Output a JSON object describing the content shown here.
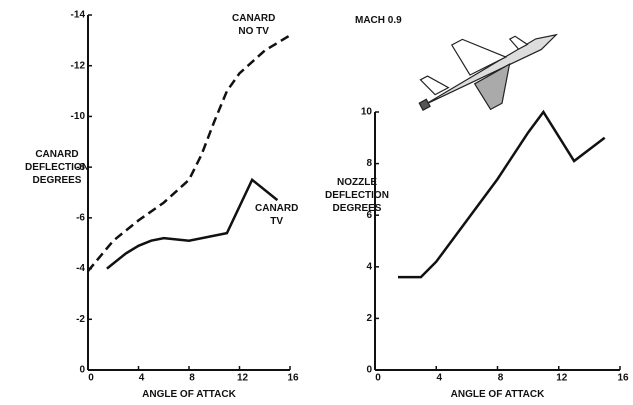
{
  "chart_data": [
    {
      "type": "line",
      "xlabel": "ANGLE OF ATTACK",
      "ylabel": "CANARD\nDEFLECTION\nDEGREES",
      "xlim": [
        0,
        16
      ],
      "xticks": [
        0,
        4,
        8,
        12,
        16
      ],
      "ylim": [
        0,
        -14
      ],
      "yticks": [
        0,
        -2,
        -4,
        -6,
        -8,
        -10,
        -12,
        -14
      ],
      "series": [
        {
          "name": "CANARD\nNO TV",
          "color": "#111111",
          "line_style": "dashed",
          "x": [
            0,
            1,
            2,
            4,
            6,
            8,
            9,
            10,
            11,
            12,
            14,
            16
          ],
          "values": [
            -3.9,
            -4.5,
            -5.1,
            -5.9,
            -6.6,
            -7.5,
            -8.5,
            -9.8,
            -11,
            -11.7,
            -12.6,
            -13.2
          ]
        },
        {
          "name": "CANARD\nTV",
          "color": "#111111",
          "line_style": "solid",
          "x": [
            1.5,
            3,
            4,
            5,
            6,
            8,
            11,
            13,
            15
          ],
          "values": [
            -4.0,
            -4.6,
            -4.9,
            -5.1,
            -5.2,
            -5.1,
            -5.4,
            -7.5,
            -6.7
          ]
        }
      ]
    },
    {
      "type": "line",
      "title": "MACH 0.9",
      "xlabel": "ANGLE OF ATTACK",
      "ylabel": "NOZZLE\nDEFLECTION\nDEGREES",
      "xlim": [
        0,
        16
      ],
      "xticks": [
        0,
        4,
        8,
        12,
        16
      ],
      "ylim": [
        0,
        10
      ],
      "yticks": [
        0,
        2,
        4,
        6,
        8,
        10
      ],
      "series": [
        {
          "color": "#111111",
          "line_style": "solid",
          "x": [
            1.5,
            3,
            4,
            6,
            8,
            10,
            11,
            13,
            15
          ],
          "values": [
            3.6,
            3.6,
            4.2,
            5.8,
            7.4,
            9.2,
            10,
            8.1,
            9.0
          ]
        }
      ]
    }
  ]
}
